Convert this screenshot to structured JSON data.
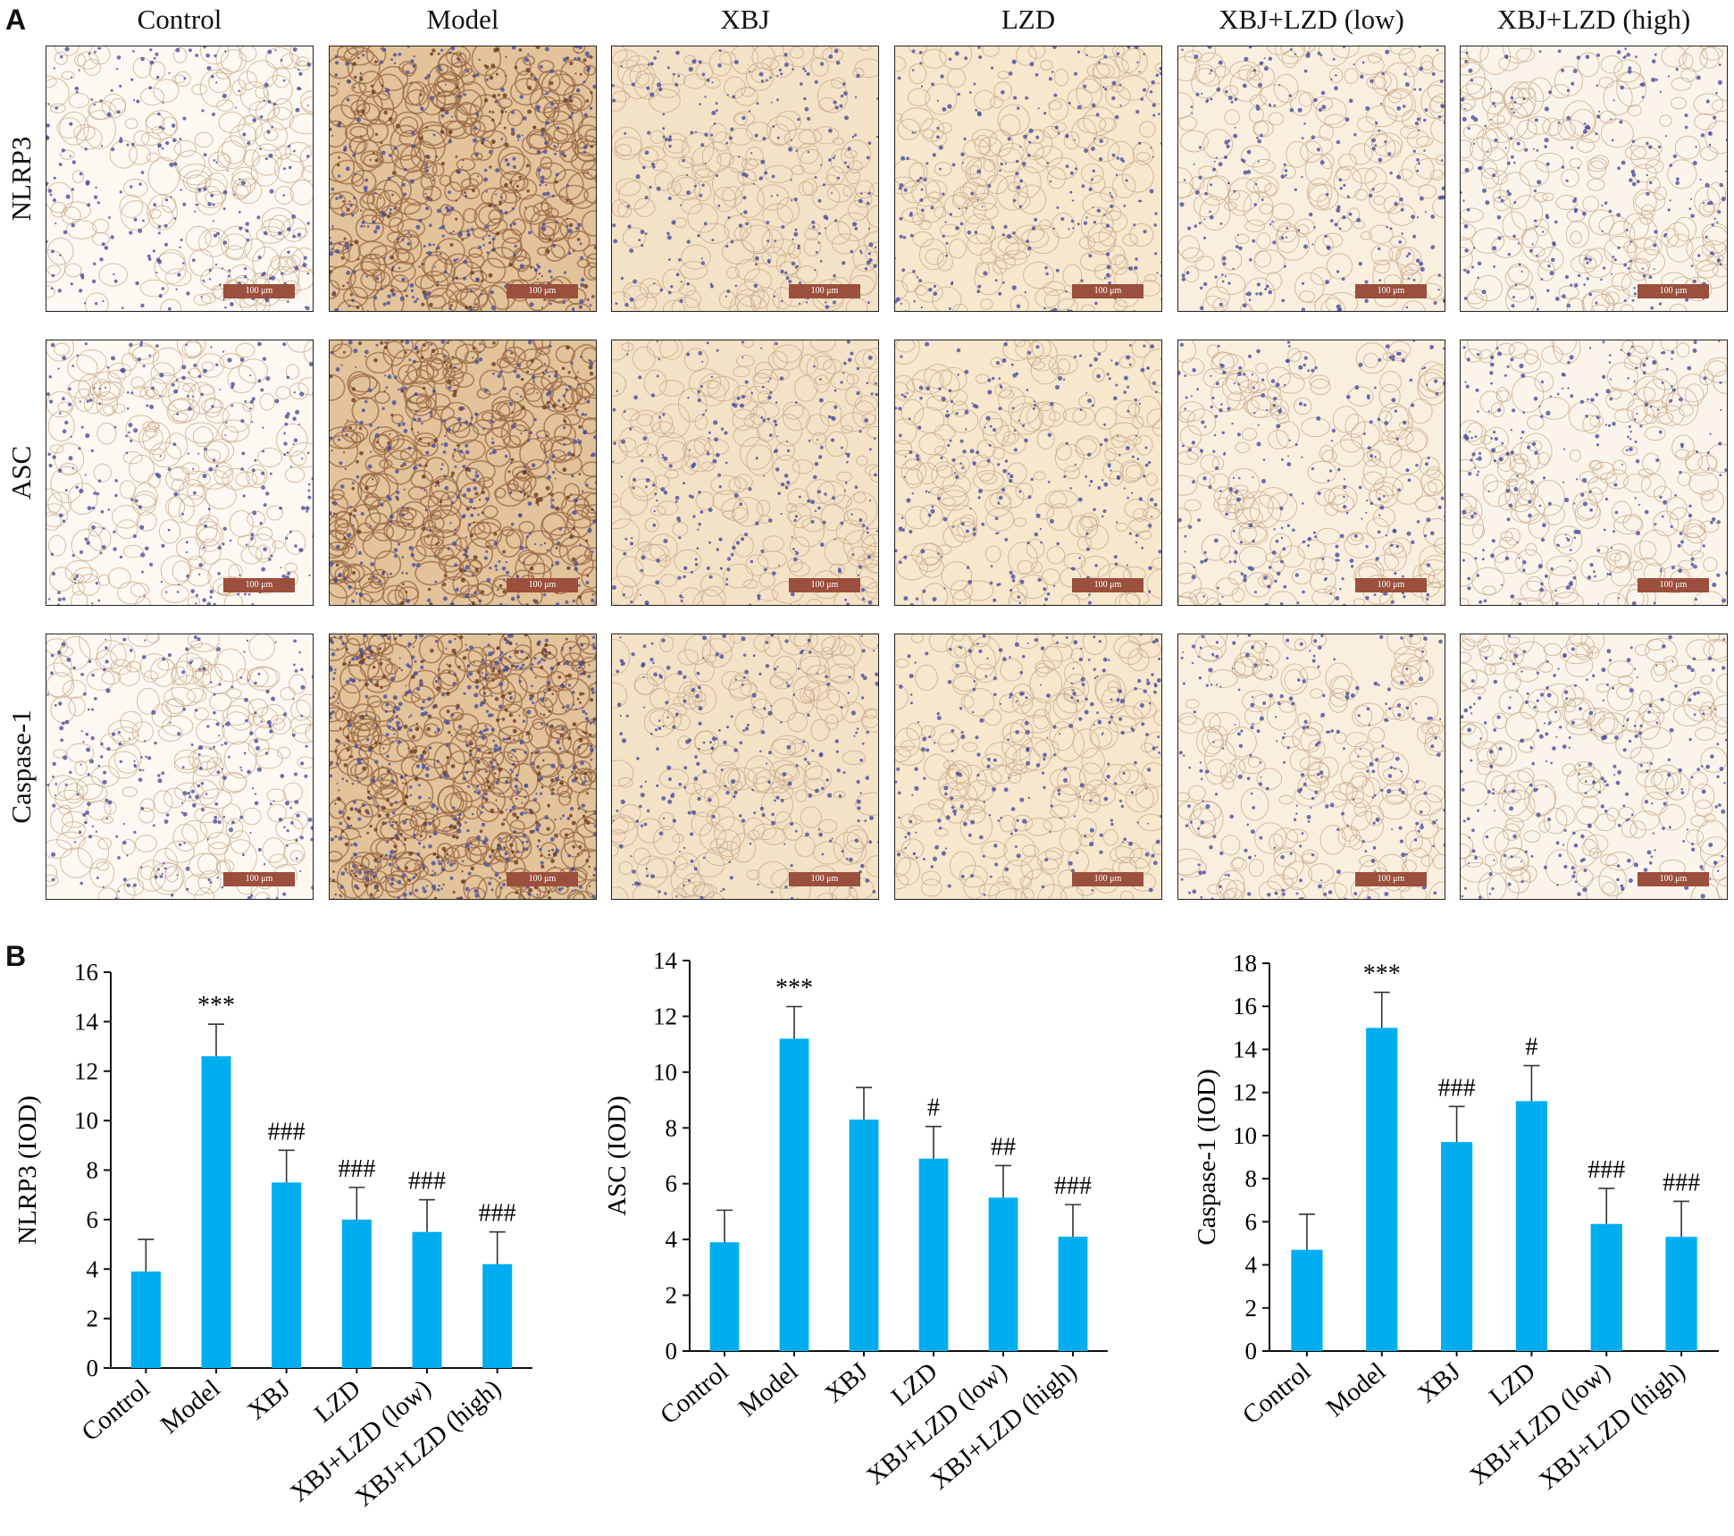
{
  "panel_a": {
    "letter": "A",
    "column_headers": [
      "Control",
      "Model",
      "XBJ",
      "LZD",
      "XBJ+LZD (low)",
      "XBJ+LZD (high)"
    ],
    "row_labels": [
      "NLRP3",
      "ASC",
      "Caspase-1"
    ],
    "scale_bar_label": "100 μm",
    "tint_colors": {
      "Control": "#fdf8f1",
      "Model": "#e2c39a",
      "XBJ": "#f4e2c6",
      "LZD": "#f6e7cd",
      "XBJ+LZD (low)": "#f9efdf",
      "XBJ+LZD (high)": "#fbf4ea"
    },
    "nuclei_color": "#4a4e9e",
    "scale_bar_color": "#9b4f3d"
  },
  "panel_b": {
    "letter": "B"
  },
  "chart_data": [
    {
      "type": "bar",
      "categories": [
        "Control",
        "Model",
        "XBJ",
        "LZD",
        "XBJ+LZD (low)",
        "XBJ+LZD (high)"
      ],
      "values": [
        3.9,
        12.6,
        7.5,
        6.0,
        5.5,
        4.2
      ],
      "errors": [
        1.3,
        1.3,
        1.3,
        1.3,
        1.3,
        1.3
      ],
      "annotations": [
        "",
        "***",
        "###",
        "###",
        "###",
        "###"
      ],
      "ylabel": "NLRP3 (IOD)",
      "xlabel": "",
      "ylim": [
        0,
        16
      ],
      "yticks": [
        0,
        2,
        4,
        6,
        8,
        10,
        12,
        14,
        16
      ],
      "color": "#00aeef"
    },
    {
      "type": "bar",
      "categories": [
        "Control",
        "Model",
        "XBJ",
        "LZD",
        "XBJ+LZD (low)",
        "XBJ+LZD (high)"
      ],
      "values": [
        3.9,
        11.2,
        8.3,
        6.9,
        5.5,
        4.1
      ],
      "errors": [
        1.15,
        1.15,
        1.15,
        1.15,
        1.15,
        1.15
      ],
      "annotations": [
        "",
        "***",
        "",
        "#",
        "##",
        "###"
      ],
      "ylabel": "ASC (IOD)",
      "xlabel": "",
      "ylim": [
        0,
        14
      ],
      "yticks": [
        0,
        2,
        4,
        6,
        8,
        10,
        12,
        14
      ],
      "color": "#00aeef"
    },
    {
      "type": "bar",
      "categories": [
        "Control",
        "Model",
        "XBJ",
        "LZD",
        "XBJ+LZD (low)",
        "XBJ+LZD (high)"
      ],
      "values": [
        4.7,
        15.0,
        9.7,
        11.6,
        5.9,
        5.3
      ],
      "errors": [
        1.65,
        1.65,
        1.65,
        1.65,
        1.65,
        1.65
      ],
      "annotations": [
        "",
        "***",
        "###",
        "#",
        "###",
        "###"
      ],
      "ylabel": "Caspase-1 (IOD)",
      "xlabel": "",
      "ylim": [
        0,
        18
      ],
      "yticks": [
        0,
        2,
        4,
        6,
        8,
        10,
        12,
        14,
        16,
        18
      ],
      "color": "#00aeef"
    }
  ]
}
